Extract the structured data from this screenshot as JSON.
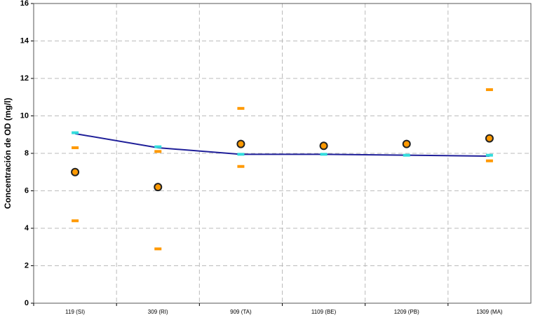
{
  "chart_data": {
    "type": "line",
    "y_label": "Concentración de OD (mg/l)",
    "categories": [
      "119 (SI)",
      "309 (RI)",
      "909 (TA)",
      "1109 (BE)",
      "1209 (PB)",
      "1309 (MA)"
    ],
    "series": [
      {
        "color": "#1f1f99",
        "marker": "line",
        "values": [
          9.05,
          8.3,
          7.95,
          7.95,
          7.9,
          7.85
        ]
      },
      {
        "color": "#33dddd",
        "marker": "dash",
        "values": [
          9.1,
          8.35,
          7.95,
          7.95,
          7.9,
          7.9
        ]
      },
      {
        "color": "#ff9900",
        "marker": "dash",
        "values": [
          8.3,
          8.1,
          10.4,
          null,
          null,
          11.4
        ]
      },
      {
        "color": "#ff9900",
        "marker": "dash",
        "values": [
          4.4,
          2.9,
          7.3,
          null,
          null,
          7.6
        ]
      },
      {
        "color": "#ff9900",
        "marker": "circle",
        "values": [
          7.0,
          6.2,
          8.5,
          8.4,
          8.5,
          8.8
        ]
      }
    ],
    "ylim": [
      0,
      16
    ],
    "yticks": [
      0,
      2,
      4,
      6,
      8,
      10,
      12,
      14,
      16
    ],
    "grid": true
  }
}
